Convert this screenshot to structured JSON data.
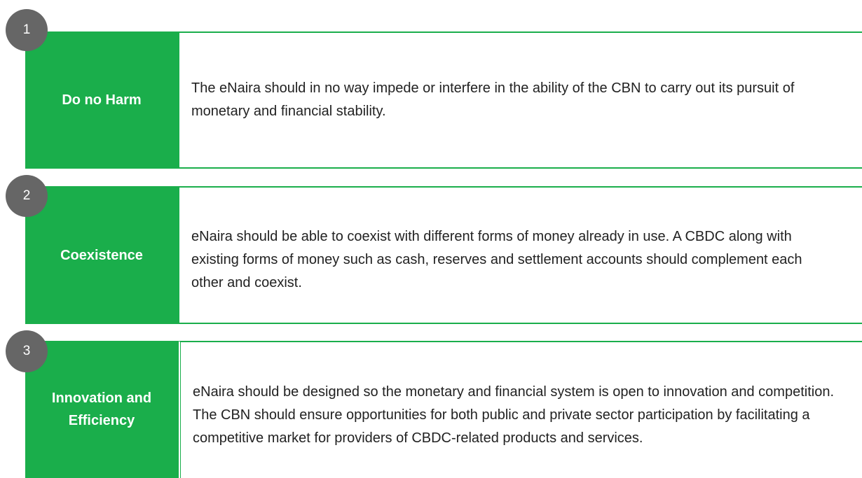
{
  "items": [
    {
      "number": "1",
      "label": "Do no Harm",
      "text": "The eNaira should in no way impede or interfere in the ability of the CBN to carry out its pursuit of monetary and financial stability."
    },
    {
      "number": "2",
      "label": "Coexistence",
      "text": "eNaira should be able to coexist with different forms of money already in use. A CBDC along with existing forms of money such as cash, reserves and settlement accounts should complement each other and coexist."
    },
    {
      "number": "3",
      "label": "Innovation and Efficiency",
      "text": "eNaira should be designed so the monetary and financial system is open to innovation and competition. The CBN should ensure opportunities for both public and private sector participation by facilitating a competitive market for providers of CBDC-related products and services."
    }
  ]
}
